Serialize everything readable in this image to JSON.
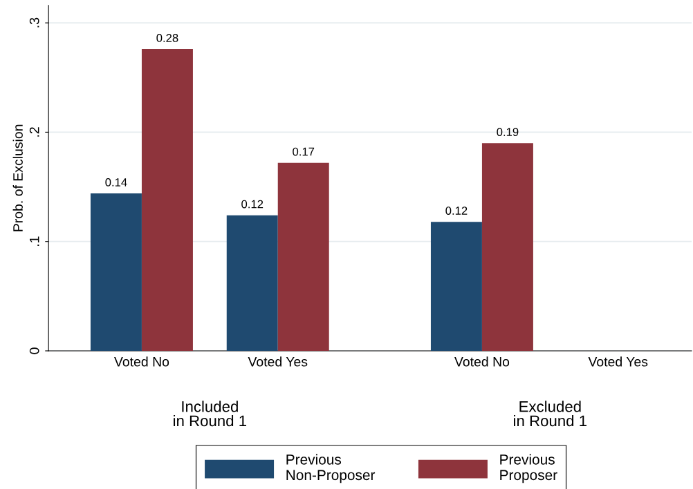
{
  "chart_data": {
    "type": "bar",
    "ylabel": "Prob. of Exclusion",
    "categories": [
      "Voted No",
      "Voted Yes",
      "Voted No",
      "Voted Yes"
    ],
    "series": [
      {
        "name": "Previous\nNon-Proposer",
        "color": "#1f4a70",
        "values": [
          0.144,
          0.124,
          0.118,
          null
        ],
        "value_labels": [
          "0.14",
          "0.12",
          "0.12",
          null
        ]
      },
      {
        "name": "Previous\nProposer",
        "color": "#8e343c",
        "values": [
          0.276,
          0.172,
          0.19,
          null
        ],
        "value_labels": [
          "0.28",
          "0.17",
          "0.19",
          null
        ]
      }
    ],
    "annotations": [
      "Included\nin Round 1",
      "Excluded\nin Round 1"
    ],
    "ylim": [
      0,
      0.316
    ],
    "yticks": [
      {
        "value": 0,
        "label": "0"
      },
      {
        "value": 0.1,
        "label": ".1"
      },
      {
        "value": 0.2,
        "label": ".2"
      },
      {
        "value": 0.3,
        "label": ".3"
      }
    ],
    "grid": "y",
    "legend": "bottom"
  }
}
